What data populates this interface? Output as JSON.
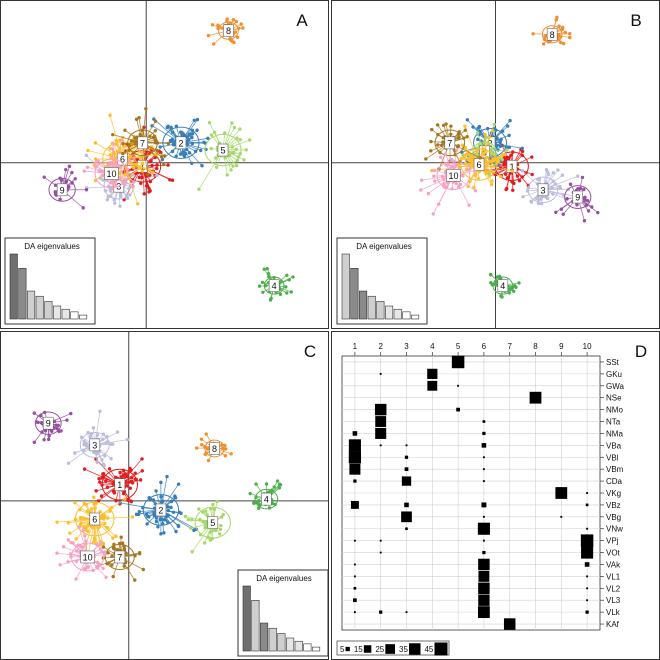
{
  "figure": {
    "panels": [
      {
        "id": "A",
        "label": "A",
        "inset_title": "DA eigenvalues"
      },
      {
        "id": "B",
        "label": "B",
        "inset_title": "DA eigenvalues"
      },
      {
        "id": "C",
        "label": "C",
        "inset_title": "DA eigenvalues"
      },
      {
        "id": "D",
        "label": "D"
      }
    ]
  },
  "chart_data": [
    {
      "id": "A",
      "type": "scatter",
      "subtype": "DAPC scatterplot with cluster ellipses and minimum spanning star",
      "title": "A",
      "inset": {
        "title": "DA eigenvalues",
        "type": "bar",
        "values": [
          100,
          78,
          43,
          35,
          27,
          20,
          15,
          11,
          6
        ],
        "highlighted_axes": 2
      },
      "clusters": [
        {
          "label": "1",
          "color": "#e41a1c",
          "center": [
            -0.1,
            -0.1
          ],
          "spread": 0.55,
          "n": 60
        },
        {
          "label": "2",
          "color": "#377eb8",
          "center": [
            0.95,
            0.55
          ],
          "spread": 0.55,
          "n": 60
        },
        {
          "label": "3",
          "color": "#bcbddc",
          "center": [
            -0.75,
            -0.65
          ],
          "spread": 0.45,
          "n": 45
        },
        {
          "label": "4",
          "color": "#4daf4a",
          "center": [
            3.5,
            -3.4
          ],
          "spread": 0.3,
          "n": 35
        },
        {
          "label": "5",
          "color": "#a6d96a",
          "center": [
            2.1,
            0.35
          ],
          "spread": 0.55,
          "n": 40
        },
        {
          "label": "6",
          "color": "#fdbf2d",
          "center": [
            -0.65,
            0.1
          ],
          "spread": 0.6,
          "n": 70
        },
        {
          "label": "7",
          "color": "#a6761d",
          "center": [
            -0.1,
            0.55
          ],
          "spread": 0.45,
          "n": 40
        },
        {
          "label": "8",
          "color": "#f28e2b",
          "center": [
            2.25,
            3.65
          ],
          "spread": 0.3,
          "n": 35
        },
        {
          "label": "9",
          "color": "#984ea3",
          "center": [
            -2.3,
            -0.75
          ],
          "spread": 0.4,
          "n": 30
        },
        {
          "label": "10",
          "color": "#f7a1c4",
          "center": [
            -0.95,
            -0.3
          ],
          "spread": 0.5,
          "n": 50
        }
      ],
      "xlim": [
        -4,
        5
      ],
      "ylim": [
        -4.6,
        4.5
      ]
    },
    {
      "id": "B",
      "type": "scatter",
      "subtype": "DAPC scatterplot with cluster ellipses and minimum spanning star",
      "title": "B",
      "inset": {
        "title": "DA eigenvalues",
        "type": "bar",
        "values": [
          100,
          78,
          43,
          35,
          27,
          20,
          15,
          11,
          6
        ],
        "highlighted_axes": [
          2,
          3
        ]
      },
      "clusters": [
        {
          "label": "1",
          "color": "#e41a1c",
          "center": [
            0.45,
            -0.1
          ],
          "spread": 0.5,
          "n": 60
        },
        {
          "label": "2",
          "color": "#377eb8",
          "center": [
            -0.15,
            0.55
          ],
          "spread": 0.5,
          "n": 60
        },
        {
          "label": "3",
          "color": "#bcbddc",
          "center": [
            1.3,
            -0.75
          ],
          "spread": 0.45,
          "n": 45
        },
        {
          "label": "4",
          "color": "#4daf4a",
          "center": [
            0.2,
            -3.4
          ],
          "spread": 0.3,
          "n": 35
        },
        {
          "label": "5",
          "color": "#a6d96a",
          "center": [
            -0.3,
            0.3
          ],
          "spread": 0.35,
          "n": 40
        },
        {
          "label": "6",
          "color": "#fdbf2d",
          "center": [
            -0.45,
            -0.05
          ],
          "spread": 0.55,
          "n": 70
        },
        {
          "label": "7",
          "color": "#a6761d",
          "center": [
            -1.25,
            0.55
          ],
          "spread": 0.45,
          "n": 40
        },
        {
          "label": "8",
          "color": "#f28e2b",
          "center": [
            1.55,
            3.55
          ],
          "spread": 0.3,
          "n": 35
        },
        {
          "label": "9",
          "color": "#984ea3",
          "center": [
            2.25,
            -0.95
          ],
          "spread": 0.4,
          "n": 30
        },
        {
          "label": "10",
          "color": "#f7a1c4",
          "center": [
            -1.15,
            -0.35
          ],
          "spread": 0.5,
          "n": 50
        }
      ],
      "xlim": [
        -4.5,
        4.5
      ],
      "ylim": [
        -4.6,
        4.5
      ]
    },
    {
      "id": "C",
      "type": "scatter",
      "subtype": "DAPC scatterplot with cluster ellipses and minimum spanning star",
      "title": "C",
      "inset": {
        "title": "DA eigenvalues",
        "type": "bar",
        "values": [
          100,
          78,
          43,
          35,
          27,
          20,
          15,
          11,
          6
        ],
        "highlighted_axes": [
          1,
          3
        ]
      },
      "clusters": [
        {
          "label": "1",
          "color": "#e41a1c",
          "center": [
            -0.25,
            0.45
          ],
          "spread": 0.55,
          "n": 60
        },
        {
          "label": "2",
          "color": "#377eb8",
          "center": [
            0.9,
            -0.25
          ],
          "spread": 0.55,
          "n": 60
        },
        {
          "label": "3",
          "color": "#bcbddc",
          "center": [
            -0.95,
            1.55
          ],
          "spread": 0.45,
          "n": 45
        },
        {
          "label": "4",
          "color": "#4daf4a",
          "center": [
            3.85,
            0.05
          ],
          "spread": 0.35,
          "n": 35
        },
        {
          "label": "5",
          "color": "#a6d96a",
          "center": [
            2.35,
            -0.6
          ],
          "spread": 0.55,
          "n": 40
        },
        {
          "label": "6",
          "color": "#fdbf2d",
          "center": [
            -0.95,
            -0.5
          ],
          "spread": 0.6,
          "n": 70
        },
        {
          "label": "7",
          "color": "#a6761d",
          "center": [
            -0.25,
            -1.55
          ],
          "spread": 0.45,
          "n": 40
        },
        {
          "label": "8",
          "color": "#f28e2b",
          "center": [
            2.4,
            1.45
          ],
          "spread": 0.3,
          "n": 35
        },
        {
          "label": "9",
          "color": "#984ea3",
          "center": [
            -2.25,
            2.15
          ],
          "spread": 0.4,
          "n": 30
        },
        {
          "label": "10",
          "color": "#f7a1c4",
          "center": [
            -1.15,
            -1.55
          ],
          "spread": 0.5,
          "n": 50
        }
      ],
      "xlim": [
        -3.6,
        5.6
      ],
      "ylim": [
        -4.4,
        4.7
      ]
    },
    {
      "id": "D",
      "type": "table",
      "subtype": "contingency table of group membership (square area proportional to count)",
      "title": "D",
      "columns": [
        "1",
        "2",
        "3",
        "4",
        "5",
        "6",
        "7",
        "8",
        "9",
        "10"
      ],
      "rows": [
        "SSt",
        "GKu",
        "GWa",
        "NSe",
        "NMo",
        "NTa",
        "NMa",
        "VBa",
        "VBl",
        "VBm",
        "CDa",
        "VKg",
        "VBz",
        "VBg",
        "VNw",
        "VPj",
        "VOt",
        "VAk",
        "VL1",
        "VL2",
        "VL3",
        "VLk",
        "KAf"
      ],
      "counts": [
        [
          0,
          0,
          0,
          0,
          45,
          0,
          0,
          0,
          0,
          0
        ],
        [
          0,
          1,
          0,
          30,
          0,
          0,
          0,
          0,
          0,
          0
        ],
        [
          0,
          0,
          0,
          28,
          1,
          0,
          0,
          0,
          0,
          0
        ],
        [
          0,
          0,
          0,
          0,
          0,
          0,
          0,
          40,
          0,
          0
        ],
        [
          0,
          38,
          0,
          0,
          4,
          0,
          0,
          0,
          0,
          0
        ],
        [
          0,
          34,
          0,
          0,
          0,
          2,
          0,
          0,
          0,
          0
        ],
        [
          6,
          35,
          0,
          0,
          0,
          3,
          0,
          0,
          0,
          0
        ],
        [
          42,
          1,
          1,
          0,
          0,
          6,
          0,
          0,
          0,
          0
        ],
        [
          43,
          0,
          3,
          0,
          0,
          1,
          0,
          0,
          0,
          0
        ],
        [
          35,
          0,
          4,
          0,
          0,
          1,
          0,
          0,
          0,
          0
        ],
        [
          3,
          0,
          25,
          0,
          0,
          1,
          0,
          0,
          0,
          0
        ],
        [
          0,
          0,
          0,
          0,
          0,
          0,
          0,
          0,
          40,
          1
        ],
        [
          18,
          0,
          6,
          0,
          0,
          7,
          0,
          0,
          0,
          2
        ],
        [
          0,
          0,
          33,
          0,
          0,
          1,
          0,
          0,
          1,
          0
        ],
        [
          0,
          0,
          2,
          0,
          0,
          42,
          0,
          0,
          0,
          1
        ],
        [
          1,
          1,
          0,
          0,
          0,
          1,
          0,
          0,
          0,
          45
        ],
        [
          0,
          1,
          0,
          0,
          0,
          3,
          0,
          0,
          0,
          42
        ],
        [
          1,
          0,
          0,
          0,
          0,
          38,
          0,
          0,
          0,
          6
        ],
        [
          1,
          0,
          0,
          0,
          0,
          34,
          0,
          0,
          0,
          1
        ],
        [
          2,
          0,
          0,
          0,
          0,
          38,
          0,
          0,
          0,
          1
        ],
        [
          4,
          0,
          0,
          0,
          0,
          37,
          0,
          0,
          0,
          1
        ],
        [
          1,
          3,
          1,
          0,
          0,
          40,
          0,
          0,
          0,
          3
        ],
        [
          0,
          0,
          0,
          0,
          0,
          0,
          38,
          0,
          0,
          0
        ]
      ],
      "legend": {
        "values": [
          5,
          15,
          25,
          35,
          45
        ],
        "labels": [
          "5",
          "15",
          "25",
          "35",
          "45"
        ]
      }
    }
  ]
}
